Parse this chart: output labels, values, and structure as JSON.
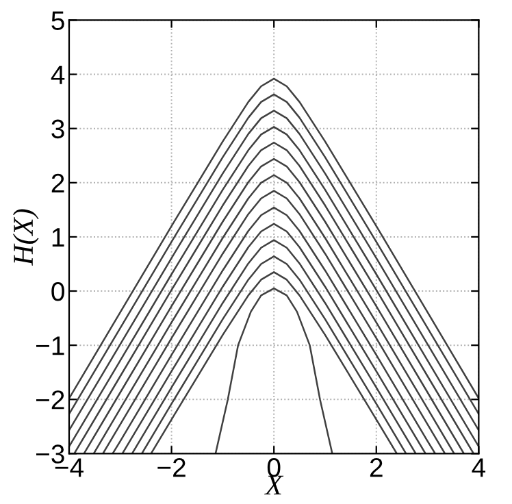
{
  "chart_data": {
    "type": "line",
    "xlabel": "X",
    "ylabel": "H(X)",
    "xlim": [
      -4,
      4
    ],
    "ylim": [
      -3,
      5
    ],
    "xticks": [
      -4,
      -2,
      0,
      2,
      4
    ],
    "yticks": [
      -3,
      -2,
      -1,
      0,
      1,
      2,
      3,
      4,
      5
    ],
    "grid": true,
    "marker": "none",
    "line_style": "solid",
    "series": [
      {
        "color": "#404040",
        "x": [
          -4,
          -3,
          -2,
          -1.5,
          -1,
          -0.5,
          -0.25,
          0,
          0.25,
          0.5,
          1,
          1.5,
          2,
          3,
          4
        ],
        "values": [
          -1.98,
          -0.39,
          1.2,
          1.98,
          2.76,
          3.49,
          3.78,
          3.92,
          3.78,
          3.49,
          2.76,
          1.98,
          1.2,
          -0.39,
          -1.98
        ]
      },
      {
        "color": "#404040",
        "x": [
          -4,
          -3,
          -2,
          -1.5,
          -1,
          -0.5,
          -0.25,
          0,
          0.25,
          0.5,
          1,
          1.5,
          2,
          3,
          4
        ],
        "values": [
          -2.27,
          -0.68,
          0.91,
          1.69,
          2.47,
          3.2,
          3.49,
          3.63,
          3.49,
          3.2,
          2.47,
          1.69,
          0.91,
          -0.68,
          -2.27
        ]
      },
      {
        "color": "#404040",
        "x": [
          -4,
          -3,
          -2,
          -1.5,
          -1,
          -0.5,
          -0.25,
          0,
          0.25,
          0.5,
          1,
          1.5,
          2,
          3,
          4
        ],
        "values": [
          -2.57,
          -0.98,
          0.61,
          1.39,
          2.17,
          2.9,
          3.19,
          3.33,
          3.19,
          2.9,
          2.17,
          1.39,
          0.61,
          -0.98,
          -2.57
        ]
      },
      {
        "color": "#404040",
        "x": [
          -4,
          -3,
          -2,
          -1.5,
          -1,
          -0.5,
          -0.25,
          0,
          0.25,
          0.5,
          1,
          1.5,
          2,
          3,
          4
        ],
        "values": [
          -2.87,
          -1.28,
          0.31,
          1.09,
          1.87,
          2.6,
          2.89,
          3.03,
          2.89,
          2.6,
          1.87,
          1.09,
          0.31,
          -1.28,
          -2.87
        ]
      },
      {
        "color": "#404040",
        "x": [
          -3.9,
          -3,
          -2,
          -1.5,
          -1,
          -0.5,
          -0.25,
          0,
          0.25,
          0.5,
          1,
          1.5,
          2,
          3,
          3.9
        ],
        "values": [
          -3,
          -1.57,
          0.02,
          0.8,
          1.58,
          2.31,
          2.6,
          2.74,
          2.6,
          2.31,
          1.58,
          0.8,
          0.02,
          -1.57,
          -3
        ]
      },
      {
        "color": "#404040",
        "x": [
          -3.71,
          -3,
          -2,
          -1.5,
          -1,
          -0.5,
          -0.25,
          0,
          0.25,
          0.5,
          1,
          1.5,
          2,
          3,
          3.71
        ],
        "values": [
          -3,
          -1.87,
          -0.28,
          0.5,
          1.28,
          2.01,
          2.3,
          2.44,
          2.3,
          2.01,
          1.28,
          0.5,
          -0.28,
          -1.87,
          -3
        ]
      },
      {
        "color": "#404040",
        "x": [
          -3.52,
          -3,
          -2,
          -1.5,
          -1,
          -0.5,
          -0.25,
          0,
          0.25,
          0.5,
          1,
          1.5,
          2,
          3,
          3.52
        ],
        "values": [
          -3,
          -2.17,
          -0.58,
          0.2,
          0.98,
          1.71,
          2.0,
          2.14,
          2.0,
          1.71,
          0.98,
          0.2,
          -0.58,
          -2.17,
          -3
        ]
      },
      {
        "color": "#404040",
        "x": [
          -3.34,
          -3,
          -2,
          -1.5,
          -1,
          -0.5,
          -0.25,
          0,
          0.25,
          0.5,
          1,
          1.5,
          2,
          3,
          3.34
        ],
        "values": [
          -3,
          -2.46,
          -0.87,
          -0.09,
          0.69,
          1.42,
          1.71,
          1.85,
          1.71,
          1.42,
          0.69,
          -0.09,
          -0.87,
          -2.46,
          -3
        ]
      },
      {
        "color": "#404040",
        "x": [
          -3.15,
          -3,
          -2,
          -1.5,
          -1,
          -0.5,
          -0.25,
          0,
          0.25,
          0.5,
          1,
          1.5,
          2,
          3,
          3.15
        ],
        "values": [
          -3,
          -2.77,
          -1.18,
          -0.4,
          0.38,
          1.11,
          1.4,
          1.54,
          1.4,
          1.11,
          0.38,
          -0.4,
          -1.18,
          -2.77,
          -3
        ]
      },
      {
        "color": "#404040",
        "x": [
          -2.96,
          -2,
          -1.5,
          -1,
          -0.5,
          -0.25,
          0,
          0.25,
          0.5,
          1,
          1.5,
          2,
          2.96
        ],
        "values": [
          -3,
          -1.48,
          -0.7,
          0.08,
          0.81,
          1.1,
          1.24,
          1.1,
          0.81,
          0.08,
          -0.7,
          -1.48,
          -3
        ]
      },
      {
        "color": "#404040",
        "x": [
          -2.77,
          -2,
          -1.5,
          -1,
          -0.5,
          -0.25,
          0,
          0.25,
          0.5,
          1,
          1.5,
          2,
          2.77
        ],
        "values": [
          -3,
          -1.78,
          -1.0,
          -0.22,
          0.51,
          0.8,
          0.94,
          0.8,
          0.51,
          -0.22,
          -1.0,
          -1.78,
          -3
        ]
      },
      {
        "color": "#404040",
        "x": [
          -2.58,
          -2,
          -1.5,
          -1,
          -0.5,
          -0.25,
          0,
          0.25,
          0.5,
          1,
          1.5,
          2,
          2.58
        ],
        "values": [
          -3,
          -2.08,
          -1.3,
          -0.52,
          0.21,
          0.5,
          0.64,
          0.5,
          0.21,
          -0.52,
          -1.3,
          -2.08,
          -3
        ]
      },
      {
        "color": "#404040",
        "x": [
          -2.4,
          -2,
          -1.5,
          -1,
          -0.5,
          -0.25,
          0,
          0.25,
          0.5,
          1,
          1.5,
          2,
          2.4
        ],
        "values": [
          -3,
          -2.37,
          -1.59,
          -0.81,
          -0.08,
          0.21,
          0.35,
          0.21,
          -0.08,
          -0.81,
          -1.59,
          -2.37,
          -3
        ]
      },
      {
        "color": "#404040",
        "x": [
          -1.14,
          -0.9,
          -0.7,
          -0.45,
          -0.25,
          0,
          0.25,
          0.45,
          0.7,
          0.9,
          1.14
        ],
        "values": [
          -3,
          -2,
          -1,
          -0.38,
          -0.08,
          0.05,
          -0.08,
          -0.38,
          -1,
          -2,
          -3
        ]
      }
    ]
  }
}
